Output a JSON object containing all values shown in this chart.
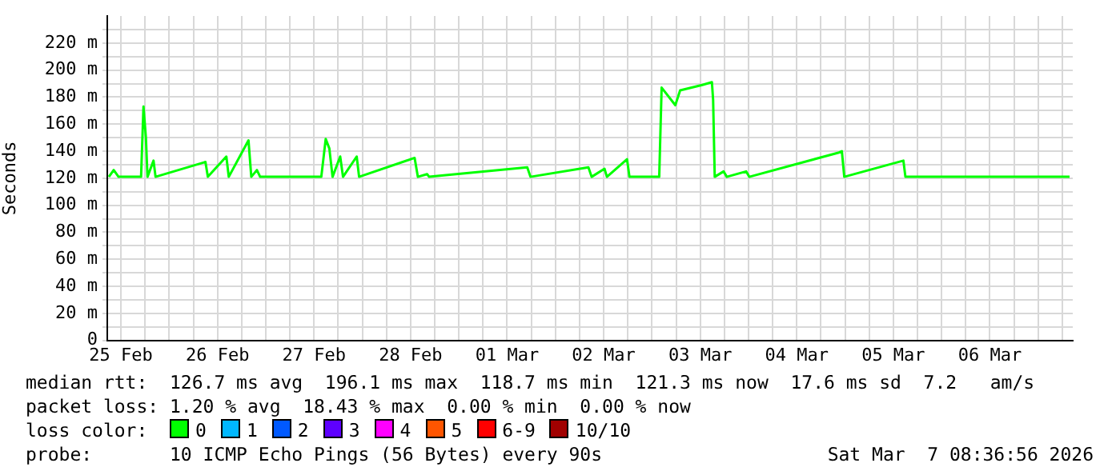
{
  "chart_data": {
    "type": "line",
    "ylabel": "Seconds",
    "legend": "bottom",
    "legend_title": "loss color:",
    "grid": true,
    "marker": "none",
    "line_style": "solid",
    "xlim": [
      "2026-02-25T08:36",
      "2026-03-07T08:36"
    ],
    "xticks": [
      {
        "value": "2026-02-25T12:00",
        "label": "25 Feb"
      },
      {
        "value": "2026-02-25T18:00",
        "label": null
      },
      {
        "value": "2026-02-26T00:00",
        "label": null
      },
      {
        "value": "2026-02-26T06:00",
        "label": null
      },
      {
        "value": "2026-02-26T12:00",
        "label": "26 Feb"
      },
      {
        "value": "2026-02-26T18:00",
        "label": null
      },
      {
        "value": "2026-02-27T00:00",
        "label": null
      },
      {
        "value": "2026-02-27T06:00",
        "label": null
      },
      {
        "value": "2026-02-27T12:00",
        "label": "27 Feb"
      },
      {
        "value": "2026-02-27T18:00",
        "label": null
      },
      {
        "value": "2026-02-28T00:00",
        "label": null
      },
      {
        "value": "2026-02-28T06:00",
        "label": null
      },
      {
        "value": "2026-02-28T12:00",
        "label": "28 Feb"
      },
      {
        "value": "2026-02-28T18:00",
        "label": null
      },
      {
        "value": "2026-03-01T00:00",
        "label": null
      },
      {
        "value": "2026-03-01T06:00",
        "label": null
      },
      {
        "value": "2026-03-01T12:00",
        "label": "01 Mar"
      },
      {
        "value": "2026-03-01T18:00",
        "label": null
      },
      {
        "value": "2026-03-02T00:00",
        "label": null
      },
      {
        "value": "2026-03-02T06:00",
        "label": null
      },
      {
        "value": "2026-03-02T12:00",
        "label": "02 Mar"
      },
      {
        "value": "2026-03-02T18:00",
        "label": null
      },
      {
        "value": "2026-03-03T00:00",
        "label": null
      },
      {
        "value": "2026-03-03T06:00",
        "label": null
      },
      {
        "value": "2026-03-03T12:00",
        "label": "03 Mar"
      },
      {
        "value": "2026-03-03T18:00",
        "label": null
      },
      {
        "value": "2026-03-04T00:00",
        "label": null
      },
      {
        "value": "2026-03-04T06:00",
        "label": null
      },
      {
        "value": "2026-03-04T12:00",
        "label": "04 Mar"
      },
      {
        "value": "2026-03-04T18:00",
        "label": null
      },
      {
        "value": "2026-03-05T00:00",
        "label": null
      },
      {
        "value": "2026-03-05T06:00",
        "label": null
      },
      {
        "value": "2026-03-05T12:00",
        "label": "05 Mar"
      },
      {
        "value": "2026-03-05T18:00",
        "label": null
      },
      {
        "value": "2026-03-06T00:00",
        "label": null
      },
      {
        "value": "2026-03-06T06:00",
        "label": null
      },
      {
        "value": "2026-03-06T12:00",
        "label": "06 Mar"
      },
      {
        "value": "2026-03-06T18:00",
        "label": null
      },
      {
        "value": "2026-03-07T00:00",
        "label": null
      },
      {
        "value": "2026-03-07T06:00",
        "label": null
      }
    ],
    "ylim": [
      0,
      240
    ],
    "yticks": [
      0,
      {
        "value": 10,
        "label": null
      },
      {
        "value": 20,
        "label": "20 m"
      },
      {
        "value": 30,
        "label": null
      },
      {
        "value": 40,
        "label": "40 m"
      },
      {
        "value": 50,
        "label": null
      },
      {
        "value": 60,
        "label": "60 m"
      },
      {
        "value": 70,
        "label": null
      },
      {
        "value": 80,
        "label": "80 m"
      },
      {
        "value": 90,
        "label": null
      },
      {
        "value": 100,
        "label": "100 m"
      },
      {
        "value": 110,
        "label": null
      },
      {
        "value": 120,
        "label": "120 m"
      },
      {
        "value": 130,
        "label": null
      },
      {
        "value": 140,
        "label": "140 m"
      },
      {
        "value": 150,
        "label": null
      },
      {
        "value": 160,
        "label": "160 m"
      },
      {
        "value": 170,
        "label": null
      },
      {
        "value": 180,
        "label": "180 m"
      },
      {
        "value": 190,
        "label": null
      },
      {
        "value": 200,
        "label": "200 m"
      },
      {
        "value": 210,
        "label": null
      },
      {
        "value": 220,
        "label": "220 m"
      },
      {
        "value": 230,
        "label": null
      }
    ],
    "x": [
      "2026-02-25T09:00",
      "2026-02-25T10:12",
      "2026-02-25T11:24",
      "2026-02-25T17:00",
      "2026-02-25T17:36",
      "2026-02-25T18:12",
      "2026-02-25T18:36",
      "2026-02-25T20:06",
      "2026-02-25T20:36",
      "2026-02-26T09:00",
      "2026-02-26T09:36",
      "2026-02-26T14:12",
      "2026-02-26T14:48",
      "2026-02-26T19:42",
      "2026-02-26T20:24",
      "2026-02-26T21:48",
      "2026-02-26T22:36",
      "2026-02-27T13:48",
      "2026-02-27T14:54",
      "2026-02-27T15:48",
      "2026-02-27T16:36",
      "2026-02-27T18:30",
      "2026-02-27T19:12",
      "2026-02-27T22:36",
      "2026-02-27T23:12",
      "2026-02-28T13:00",
      "2026-02-28T13:48",
      "2026-02-28T16:06",
      "2026-02-28T16:36",
      "2026-03-01T17:00",
      "2026-03-01T17:48",
      "2026-03-02T08:12",
      "2026-03-02T09:00",
      "2026-03-02T12:12",
      "2026-03-02T12:48",
      "2026-03-02T17:48",
      "2026-03-02T18:24",
      "2026-03-03T01:48",
      "2026-03-03T02:24",
      "2026-03-03T05:48",
      "2026-03-03T07:00",
      "2026-03-03T12:30",
      "2026-03-03T14:54",
      "2026-03-03T15:12",
      "2026-03-03T15:36",
      "2026-03-03T17:48",
      "2026-03-03T18:36",
      "2026-03-03T23:24",
      "2026-03-04T00:12",
      "2026-03-04T22:30",
      "2026-03-04T23:12",
      "2026-03-04T23:48",
      "2026-03-05T14:30",
      "2026-03-05T15:00",
      "2026-03-07T07:48"
    ],
    "series": [
      {
        "name": "0",
        "color": "#00ff00",
        "values": [
          121,
          126,
          121,
          121,
          173,
          150,
          121,
          133,
          121,
          132,
          121,
          136,
          121,
          148,
          121,
          126,
          121,
          121,
          149,
          142,
          121,
          136,
          121,
          136,
          121,
          135,
          121,
          123,
          121,
          128,
          121,
          128,
          121,
          127,
          121,
          134,
          121,
          121,
          187,
          174,
          185,
          189,
          191,
          178,
          121,
          125,
          121,
          125,
          121,
          139,
          140,
          121,
          133,
          121,
          121
        ]
      },
      {
        "name": "1",
        "color": "#00b8ff",
        "values": [
          null,
          null,
          null,
          null,
          null,
          null,
          null,
          null,
          null,
          null,
          null,
          null,
          null,
          null,
          null,
          null,
          null,
          null,
          null,
          null,
          null,
          null,
          null,
          null,
          null,
          null,
          null,
          null,
          null,
          null,
          null,
          null,
          null,
          null,
          null,
          null,
          null,
          null,
          null,
          null,
          null,
          null,
          null,
          null,
          null,
          null,
          null,
          null,
          null,
          null,
          null,
          null,
          null,
          null,
          null
        ]
      },
      {
        "name": "2",
        "color": "#0059ff",
        "values": [
          null,
          null,
          null,
          null,
          null,
          null,
          null,
          null,
          null,
          null,
          null,
          null,
          null,
          null,
          null,
          null,
          null,
          null,
          null,
          null,
          null,
          null,
          null,
          null,
          null,
          null,
          null,
          null,
          null,
          null,
          null,
          null,
          null,
          null,
          null,
          null,
          null,
          null,
          null,
          null,
          null,
          null,
          null,
          null,
          null,
          null,
          null,
          null,
          null,
          null,
          null,
          null,
          null,
          null,
          null
        ]
      },
      {
        "name": "3",
        "color": "#5e00ff",
        "values": [
          null,
          null,
          null,
          null,
          null,
          null,
          null,
          null,
          null,
          null,
          null,
          null,
          null,
          null,
          null,
          null,
          null,
          null,
          null,
          null,
          null,
          null,
          null,
          null,
          null,
          null,
          null,
          null,
          null,
          null,
          null,
          null,
          null,
          null,
          null,
          null,
          null,
          null,
          null,
          null,
          null,
          null,
          null,
          null,
          null,
          null,
          null,
          null,
          null,
          null,
          null,
          null,
          null,
          null,
          null
        ]
      },
      {
        "name": "4",
        "color": "#ff00ff",
        "values": [
          null,
          null,
          null,
          null,
          null,
          null,
          null,
          null,
          null,
          null,
          null,
          null,
          null,
          null,
          null,
          null,
          null,
          null,
          null,
          null,
          null,
          null,
          null,
          null,
          null,
          null,
          null,
          null,
          null,
          null,
          null,
          null,
          null,
          null,
          null,
          null,
          null,
          null,
          null,
          null,
          null,
          null,
          null,
          null,
          null,
          null,
          null,
          null,
          null,
          null,
          null,
          null,
          null,
          null,
          null
        ]
      },
      {
        "name": "5",
        "color": "#ff5500",
        "values": [
          null,
          null,
          null,
          null,
          null,
          null,
          null,
          null,
          null,
          null,
          null,
          null,
          null,
          null,
          null,
          null,
          null,
          null,
          null,
          null,
          null,
          null,
          null,
          null,
          null,
          null,
          null,
          null,
          null,
          null,
          null,
          null,
          null,
          null,
          null,
          null,
          null,
          null,
          null,
          null,
          null,
          null,
          null,
          null,
          null,
          null,
          null,
          null,
          null,
          null,
          null,
          null,
          null,
          null,
          null
        ]
      },
      {
        "name": "6-9",
        "color": "#ff0000",
        "values": [
          null,
          null,
          null,
          null,
          null,
          null,
          null,
          null,
          null,
          null,
          null,
          null,
          null,
          null,
          null,
          null,
          null,
          null,
          null,
          null,
          null,
          null,
          null,
          null,
          null,
          null,
          null,
          null,
          null,
          null,
          null,
          null,
          null,
          null,
          null,
          null,
          null,
          null,
          null,
          null,
          null,
          null,
          null,
          null,
          null,
          null,
          null,
          null,
          null,
          null,
          null,
          null,
          null,
          null,
          null
        ]
      },
      {
        "name": "10/10",
        "color": "#a10000",
        "values": [
          null,
          null,
          null,
          null,
          null,
          null,
          null,
          null,
          null,
          null,
          null,
          null,
          null,
          null,
          null,
          null,
          null,
          null,
          null,
          null,
          null,
          null,
          null,
          null,
          null,
          null,
          null,
          null,
          null,
          null,
          null,
          null,
          null,
          null,
          null,
          null,
          null,
          null,
          null,
          null,
          null,
          null,
          null,
          null,
          null,
          null,
          null,
          null,
          null,
          null,
          null,
          null,
          null,
          null,
          null
        ]
      }
    ],
    "annotations": [
      "median rtt:  126.7 ms avg  196.1 ms max  118.7 ms min  121.3 ms now  17.6 ms sd  7.2   am/s",
      "packet loss: 1.20 % avg  18.43 % max  0.00 % min  0.00 % now",
      "probe:       10 ICMP Echo Pings (56 Bytes) every 90s",
      "Sat Mar  7 08:36:56 2026"
    ]
  }
}
